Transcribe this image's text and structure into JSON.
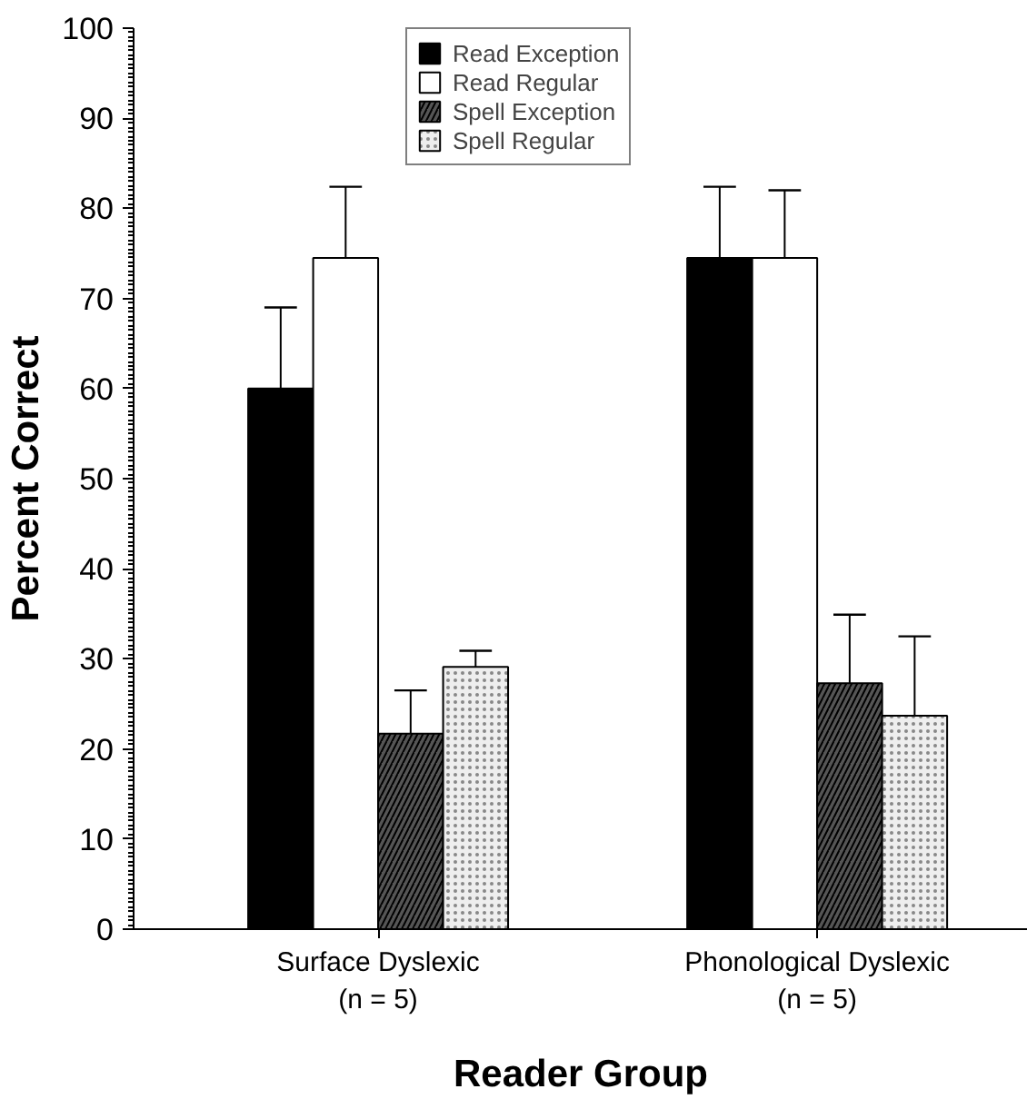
{
  "chart_data": {
    "type": "bar",
    "xlabel": "Reader Group",
    "ylabel": "Percent Correct",
    "categories": [
      "Surface Dyslexic\n(n = 5)",
      "Phonological Dyslexic\n(n = 5)"
    ],
    "series": [
      {
        "name": "Read Exception",
        "color": "#000000",
        "values": [
          60,
          74.5
        ],
        "errors": [
          [
            60,
            69
          ],
          [
            74.5,
            82.4
          ]
        ]
      },
      {
        "name": "Read Regular",
        "color": "#ffffff",
        "values": [
          74.5,
          74.5
        ],
        "errors": [
          [
            74.5,
            82.4
          ],
          [
            74.5,
            82
          ]
        ]
      },
      {
        "name": "Spell Exception",
        "color": "#555555",
        "values": [
          21.7,
          27.3
        ],
        "errors": [
          [
            21.7,
            26.5
          ],
          [
            27.3,
            34.9
          ]
        ]
      },
      {
        "name": "Spell Regular",
        "color": "#eeeeee",
        "values": [
          29.1,
          23.7
        ],
        "errors": [
          [
            29.1,
            30.9
          ],
          [
            23.7,
            32.5
          ]
        ]
      }
    ],
    "ylim": [
      0,
      100
    ],
    "yticks": [
      0,
      10,
      20,
      30,
      40,
      50,
      60,
      70,
      80,
      90,
      100
    ],
    "grid": false,
    "legend": "top"
  }
}
